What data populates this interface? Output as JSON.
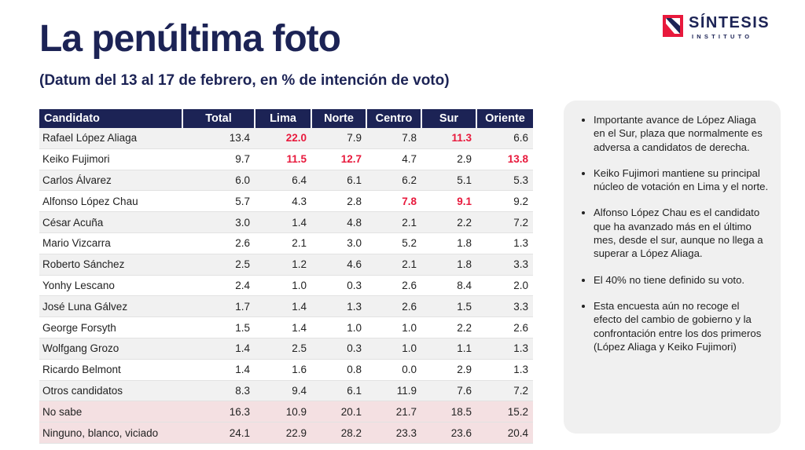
{
  "title": "La penúltima foto",
  "subtitle": "(Datum del 13 al 17 de febrero, en % de intención de voto)",
  "logo": {
    "name": "SÍNTESIS",
    "sub": "INSTITUTO",
    "mark": "sintesis-mark-icon"
  },
  "colors": {
    "navy": "#1c2355",
    "highlight": "#e8193c",
    "pink_row": "#f4e0e2",
    "stripe": "#f1f1f1"
  },
  "table": {
    "headers": [
      "Candidato",
      "Total",
      "Lima",
      "Norte",
      "Centro",
      "Sur",
      "Oriente"
    ],
    "header_highlight": [
      false,
      false,
      true,
      false,
      false,
      true,
      true
    ],
    "rows": [
      {
        "cells": [
          "Rafael López Aliaga",
          "13.4",
          "22.0",
          "7.9",
          "7.8",
          "11.3",
          "6.6"
        ],
        "hl": [
          2,
          5
        ]
      },
      {
        "cells": [
          "Keiko Fujimori",
          "9.7",
          "11.5",
          "12.7",
          "4.7",
          "2.9",
          "13.8"
        ],
        "hl": [
          2,
          3,
          6
        ]
      },
      {
        "cells": [
          "Carlos Álvarez",
          "6.0",
          "6.4",
          "6.1",
          "6.2",
          "5.1",
          "5.3"
        ],
        "hl": []
      },
      {
        "cells": [
          "Alfonso López Chau",
          "5.7",
          "4.3",
          "2.8",
          "7.8",
          "9.1",
          "9.2"
        ],
        "hl": [
          4,
          5
        ]
      },
      {
        "cells": [
          "César Acuña",
          "3.0",
          "1.4",
          "4.8",
          "2.1",
          "2.2",
          "7.2"
        ],
        "hl": []
      },
      {
        "cells": [
          "Mario Vizcarra",
          "2.6",
          "2.1",
          "3.0",
          "5.2",
          "1.8",
          "1.3"
        ],
        "hl": []
      },
      {
        "cells": [
          "Roberto Sánchez",
          "2.5",
          "1.2",
          "4.6",
          "2.1",
          "1.8",
          "3.3"
        ],
        "hl": []
      },
      {
        "cells": [
          "Yonhy Lescano",
          "2.4",
          "1.0",
          "0.3",
          "2.6",
          "8.4",
          "2.0"
        ],
        "hl": []
      },
      {
        "cells": [
          "José Luna Gálvez",
          "1.7",
          "1.4",
          "1.3",
          "2.6",
          "1.5",
          "3.3"
        ],
        "hl": []
      },
      {
        "cells": [
          "George Forsyth",
          "1.5",
          "1.4",
          "1.0",
          "1.0",
          "2.2",
          "2.6"
        ],
        "hl": []
      },
      {
        "cells": [
          "Wolfgang Grozo",
          "1.4",
          "2.5",
          "0.3",
          "1.0",
          "1.1",
          "1.3"
        ],
        "hl": []
      },
      {
        "cells": [
          "Ricardo Belmont",
          "1.4",
          "1.6",
          "0.8",
          "0.0",
          "2.9",
          "1.3"
        ],
        "hl": []
      },
      {
        "cells": [
          "Otros candidatos",
          "8.3",
          "9.4",
          "6.1",
          "11.9",
          "7.6",
          "7.2"
        ],
        "hl": []
      },
      {
        "cells": [
          "No sabe",
          "16.3",
          "10.9",
          "20.1",
          "21.7",
          "18.5",
          "15.2"
        ],
        "hl": [],
        "pink": true
      },
      {
        "cells": [
          "Ninguno, blanco, viciado",
          "24.1",
          "22.9",
          "28.2",
          "23.3",
          "23.6",
          "20.4"
        ],
        "hl": [],
        "pink": true
      }
    ]
  },
  "notes": [
    "Importante avance de López Aliaga en el Sur, plaza que normalmente es adversa a candidatos de derecha.",
    "Keiko Fujimori mantiene su principal núcleo de votación en Lima y el norte.",
    "Alfonso López Chau es el candidato que ha avanzado más en el último mes, desde el sur, aunque no llega a superar a López Aliaga.",
    "El 40% no tiene definido su voto.",
    "Esta encuesta aún no recoge el efecto del cambio de gobierno y la confrontación entre los dos primeros (López Aliaga y Keiko Fujimori)"
  ]
}
